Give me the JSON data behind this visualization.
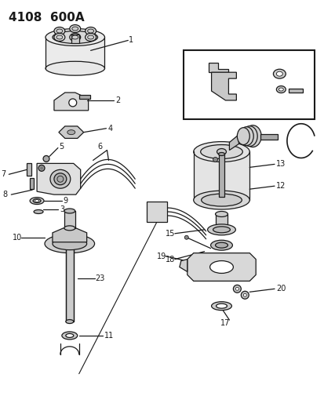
{
  "title": "4108  600A",
  "title_fontsize": 11,
  "background_color": "#ffffff",
  "line_color": "#1a1a1a",
  "figsize": [
    4.14,
    5.33
  ],
  "dpi": 100
}
